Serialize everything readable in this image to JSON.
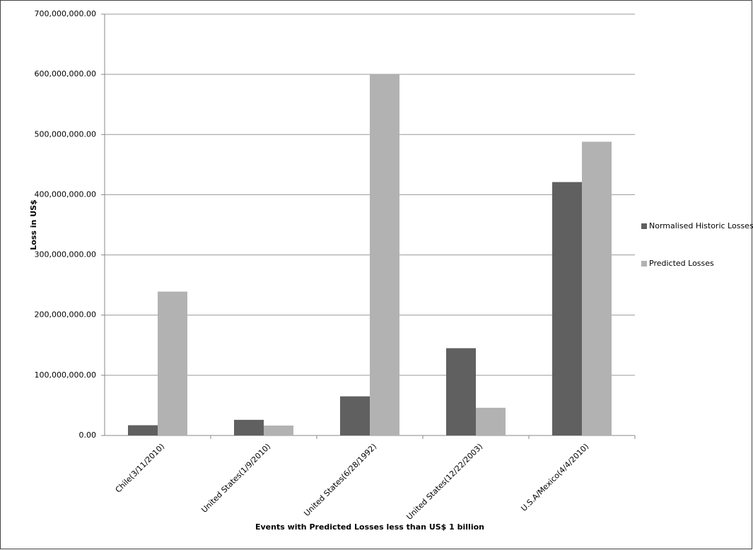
{
  "chart_data": {
    "type": "bar",
    "x_label": "Events with Predicted Losses less than  US$ 1 billion",
    "y_label": "Loss in US$",
    "categories": [
      "Chile(3/11/2010)",
      "United States(1/9/2010)",
      "United States(6/28/1992)",
      "United States(12/22/2003)",
      "U.S.A/Mexico(4/4/2010)"
    ],
    "series": [
      {
        "name": "Normalised Historic Losses",
        "color": "#606060",
        "values": [
          17000000,
          26000000,
          65000000,
          145000000,
          421000000
        ]
      },
      {
        "name": "Predicted Losses",
        "color": "#b2b2b2",
        "values": [
          239000000,
          16500000,
          600000000,
          46000000,
          488000000
        ]
      }
    ],
    "ylim": [
      0,
      700000000
    ],
    "yticks": [
      {
        "value": 0,
        "label": "0.00"
      },
      {
        "value": 100000000,
        "label": "100,000,000.00"
      },
      {
        "value": 200000000,
        "label": "200,000,000.00"
      },
      {
        "value": 300000000,
        "label": "300,000,000.00"
      },
      {
        "value": 400000000,
        "label": "400,000,000.00"
      },
      {
        "value": 500000000,
        "label": "500,000,000.00"
      },
      {
        "value": 600000000,
        "label": "600,000,000.00"
      },
      {
        "value": 700000000,
        "label": "700,000,000.00"
      }
    ],
    "grid": true,
    "legend": "right"
  }
}
